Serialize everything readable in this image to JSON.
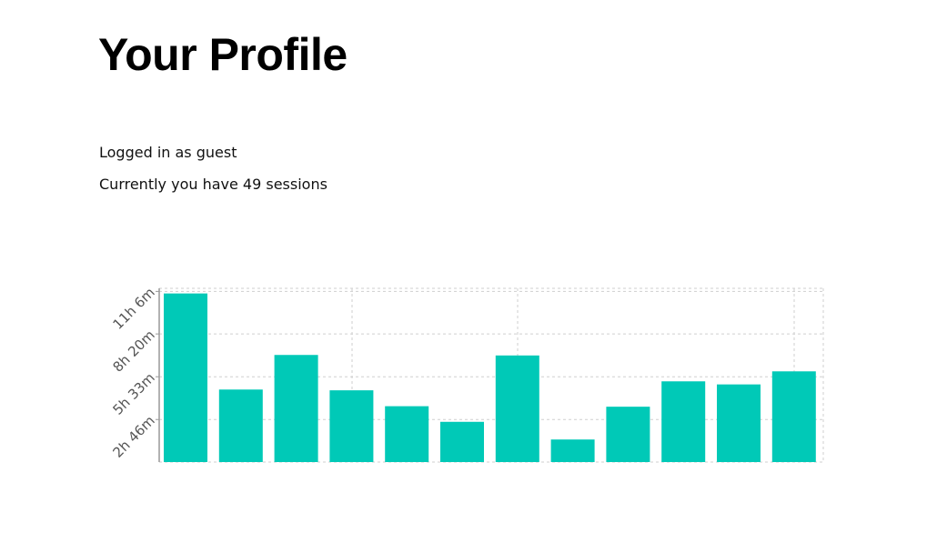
{
  "header": {
    "title": "Your Profile"
  },
  "profile": {
    "login_text": "Logged in as guest",
    "sessions_text": "Currently you have 49 sessions"
  },
  "colors": {
    "bar": "#00C9B7",
    "grid": "#cfcfcf",
    "axis": "#999999",
    "tick_text": "#555555"
  },
  "chart_data": {
    "type": "bar",
    "title": "",
    "xlabel": "",
    "ylabel": "",
    "y_unit": "minutes",
    "ylim": [
      0,
      678
    ],
    "y_ticks": [
      {
        "value": 166,
        "label": "2h 46m"
      },
      {
        "value": 333,
        "label": "5h 33m"
      },
      {
        "value": 500,
        "label": "8h 20m"
      },
      {
        "value": 666,
        "label": "11h 6m"
      }
    ],
    "grid": true,
    "values": [
      658,
      283,
      418,
      280,
      218,
      157,
      416,
      88,
      216,
      315,
      303,
      354
    ]
  }
}
